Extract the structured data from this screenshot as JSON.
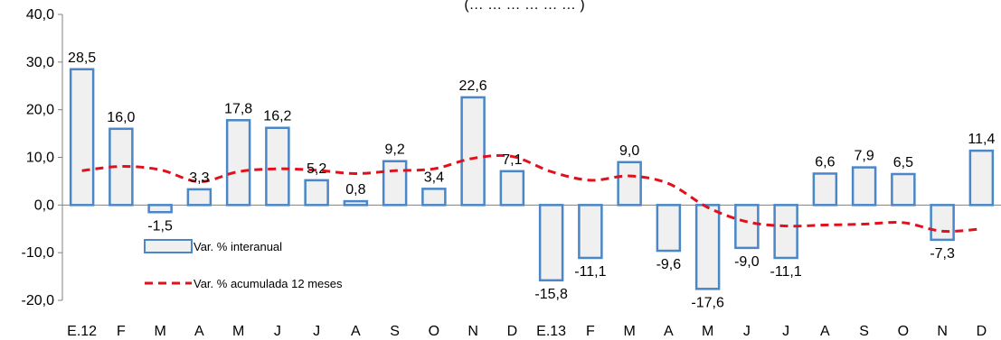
{
  "chart_data": {
    "type": "bar",
    "title": "",
    "xlabel": "",
    "ylabel": "",
    "ylim": [
      -20,
      40
    ],
    "yticks": [
      -20,
      -10,
      0,
      10,
      20,
      30,
      40
    ],
    "ytick_labels": [
      "-20,0",
      "-10,0",
      "0,0",
      "10,0",
      "20,0",
      "30,0",
      "40,0"
    ],
    "categories": [
      "E.12",
      "F",
      "M",
      "A",
      "M",
      "J",
      "J",
      "A",
      "S",
      "O",
      "N",
      "D",
      "E.13",
      "F",
      "M",
      "A",
      "M",
      "J",
      "J",
      "A",
      "S",
      "O",
      "N",
      "D"
    ],
    "series": [
      {
        "name": "Var. % interanual",
        "type": "bar",
        "color": "#4a86c8",
        "fill": "#f0f0f0",
        "values": [
          28.5,
          16.0,
          -1.5,
          3.3,
          17.8,
          16.2,
          5.2,
          0.8,
          9.2,
          3.4,
          22.6,
          7.1,
          -15.8,
          -11.1,
          9.0,
          -9.6,
          -17.6,
          -9.0,
          -11.1,
          6.6,
          7.9,
          6.5,
          -7.3,
          11.4
        ],
        "labels": [
          "28,5",
          "16,0",
          "-1,5",
          "3,3",
          "17,8",
          "16,2",
          "5,2",
          "0,8",
          "9,2",
          "3,4",
          "22,6",
          "7,1",
          "-15,8",
          "-11,1",
          "9,0",
          "-9,6",
          "-17,6",
          "-9,0",
          "-11,1",
          "6,6",
          "7,9",
          "6,5",
          "-7,3",
          "11,4"
        ]
      },
      {
        "name": "Var. % acumulada 12 meses",
        "type": "line",
        "style": "dashed",
        "color": "#e0101c",
        "values": [
          7.2,
          8.1,
          7.4,
          4.9,
          7.0,
          7.6,
          7.3,
          6.6,
          7.2,
          7.6,
          9.8,
          10.2,
          7.0,
          5.2,
          6.1,
          4.5,
          -0.5,
          -3.5,
          -4.4,
          -4.2,
          -4.0,
          -3.7,
          -5.5,
          -5.0
        ]
      }
    ],
    "title_fragment": "(… … … … … … )",
    "legend_position": "left, inside plot"
  }
}
